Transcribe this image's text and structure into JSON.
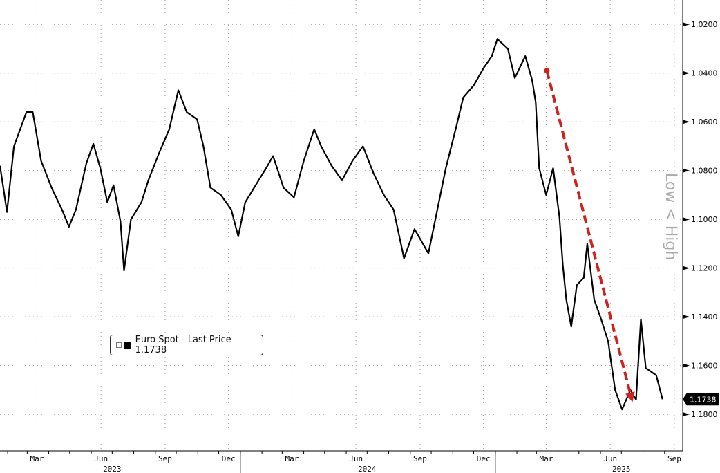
{
  "chart_data": {
    "type": "line",
    "title": "",
    "xlabel": "",
    "ylabel": "Low < High",
    "y_inverted": true,
    "ylim": [
      1.01,
      1.195
    ],
    "xlim": [
      "2023-01-21",
      "2025-09-27"
    ],
    "grid": true,
    "y_ticks": [
      "1.0200",
      "1.0400",
      "1.0600",
      "1.0800",
      "1.1000",
      "1.1200",
      "1.1400",
      "1.1600",
      "1.1800"
    ],
    "x_ticks": [
      {
        "label": "Mar",
        "date": "2023-03-15"
      },
      {
        "label": "Jun",
        "date": "2023-06-15"
      },
      {
        "label": "Sep",
        "date": "2023-09-15"
      },
      {
        "label": "Dec",
        "date": "2023-12-15"
      },
      {
        "label": "Mar",
        "date": "2024-03-15"
      },
      {
        "label": "Jun",
        "date": "2024-06-15"
      },
      {
        "label": "Sep",
        "date": "2024-09-15"
      },
      {
        "label": "Dec",
        "date": "2024-12-15"
      },
      {
        "label": "Mar",
        "date": "2025-03-15"
      },
      {
        "label": "Jun",
        "date": "2025-06-15"
      },
      {
        "label": "Sep",
        "date": "2025-09-15"
      }
    ],
    "years": [
      {
        "label": "2023",
        "date": "2023-07-01"
      },
      {
        "label": "2024",
        "date": "2024-07-01"
      },
      {
        "label": "2025",
        "date": "2025-07-01"
      }
    ],
    "year_separators": [
      "2024-01-01",
      "2025-01-01"
    ],
    "legend_position": "bottom-left",
    "last_value_label": "1.1738",
    "series": [
      {
        "name": "Euro Spot - Last Price 1.1738",
        "color": "#000000",
        "x": [
          "2023-01-21",
          "2023-01-31",
          "2023-02-10",
          "2023-02-28",
          "2023-03-09",
          "2023-03-21",
          "2023-04-05",
          "2023-04-20",
          "2023-04-30",
          "2023-05-10",
          "2023-05-25",
          "2023-06-04",
          "2023-06-14",
          "2023-06-24",
          "2023-07-03",
          "2023-07-13",
          "2023-07-18",
          "2023-07-28",
          "2023-08-12",
          "2023-08-22",
          "2023-09-06",
          "2023-09-21",
          "2023-10-04",
          "2023-10-16",
          "2023-10-31",
          "2023-11-09",
          "2023-11-19",
          "2023-12-04",
          "2023-12-19",
          "2023-12-29",
          "2024-01-08",
          "2024-01-23",
          "2024-02-07",
          "2024-02-17",
          "2024-03-03",
          "2024-03-18",
          "2024-04-01",
          "2024-04-16",
          "2024-04-26",
          "2024-05-11",
          "2024-05-26",
          "2024-06-10",
          "2024-06-25",
          "2024-07-10",
          "2024-07-25",
          "2024-08-08",
          "2024-08-23",
          "2024-09-07",
          "2024-09-27",
          "2024-10-12",
          "2024-10-22",
          "2024-11-06",
          "2024-11-16",
          "2024-12-01",
          "2024-12-15",
          "2024-12-27",
          "2025-01-04",
          "2025-01-19",
          "2025-01-29",
          "2025-02-13",
          "2025-02-23",
          "2025-02-28",
          "2025-03-05",
          "2025-03-15",
          "2025-03-25",
          "2025-04-03",
          "2025-04-08",
          "2025-04-13",
          "2025-04-20",
          "2025-04-28",
          "2025-05-08",
          "2025-05-13",
          "2025-05-23",
          "2025-06-02",
          "2025-06-12",
          "2025-06-22",
          "2025-07-02",
          "2025-07-14",
          "2025-07-22",
          "2025-07-29",
          "2025-08-05",
          "2025-08-20",
          "2025-08-29"
        ],
        "y": [
          1.078,
          1.097,
          1.07,
          1.056,
          1.056,
          1.076,
          1.087,
          1.096,
          1.103,
          1.096,
          1.077,
          1.069,
          1.079,
          1.093,
          1.086,
          1.101,
          1.121,
          1.1,
          1.093,
          1.084,
          1.073,
          1.063,
          1.047,
          1.056,
          1.059,
          1.07,
          1.087,
          1.09,
          1.096,
          1.107,
          1.093,
          1.086,
          1.079,
          1.074,
          1.087,
          1.091,
          1.076,
          1.063,
          1.07,
          1.078,
          1.084,
          1.076,
          1.07,
          1.081,
          1.09,
          1.096,
          1.116,
          1.104,
          1.114,
          1.093,
          1.079,
          1.062,
          1.05,
          1.045,
          1.038,
          1.033,
          1.026,
          1.03,
          1.042,
          1.033,
          1.043,
          1.052,
          1.079,
          1.09,
          1.079,
          1.099,
          1.119,
          1.133,
          1.144,
          1.127,
          1.124,
          1.11,
          1.133,
          1.141,
          1.15,
          1.17,
          1.178,
          1.17,
          1.174,
          1.141,
          1.161,
          1.164,
          1.1738
        ]
      }
    ],
    "annotations": [
      {
        "type": "arrow",
        "color": "#d0211c",
        "style": "dashed",
        "from": {
          "date": "2025-03-16",
          "value": 1.039
        },
        "to": {
          "date": "2025-07-17",
          "value": 1.175
        }
      }
    ]
  },
  "legend": {
    "label": "Euro Spot - Last Price 1.1738"
  }
}
